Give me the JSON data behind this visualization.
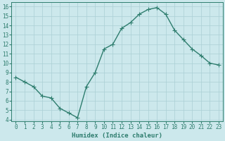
{
  "x": [
    0,
    1,
    2,
    3,
    4,
    5,
    6,
    7,
    8,
    9,
    10,
    11,
    12,
    13,
    14,
    15,
    16,
    17,
    18,
    19,
    20,
    21,
    22,
    23
  ],
  "y": [
    8.5,
    8.0,
    7.5,
    6.5,
    6.3,
    5.2,
    4.7,
    4.2,
    7.5,
    9.0,
    11.5,
    12.0,
    13.7,
    14.3,
    15.2,
    15.7,
    15.9,
    15.2,
    13.5,
    12.5,
    11.5,
    10.8,
    10.0,
    9.8
  ],
  "line_color": "#2e7d6e",
  "bg_color": "#cce8ec",
  "grid_color": "#aacfd4",
  "ylabel_ticks": [
    4,
    5,
    6,
    7,
    8,
    9,
    10,
    11,
    12,
    13,
    14,
    15,
    16
  ],
  "xlabel_ticks": [
    0,
    1,
    2,
    3,
    4,
    5,
    6,
    7,
    8,
    9,
    10,
    11,
    12,
    13,
    14,
    15,
    16,
    17,
    18,
    19,
    20,
    21,
    22,
    23
  ],
  "xlabel": "Humidex (Indice chaleur)",
  "xlim": [
    -0.5,
    23.5
  ],
  "ylim": [
    3.8,
    16.5
  ],
  "marker": "+",
  "marker_size": 4,
  "linewidth": 1.0,
  "font_color": "#2e7d6e",
  "font_size": 5.5,
  "xlabel_fontsize": 6.5
}
